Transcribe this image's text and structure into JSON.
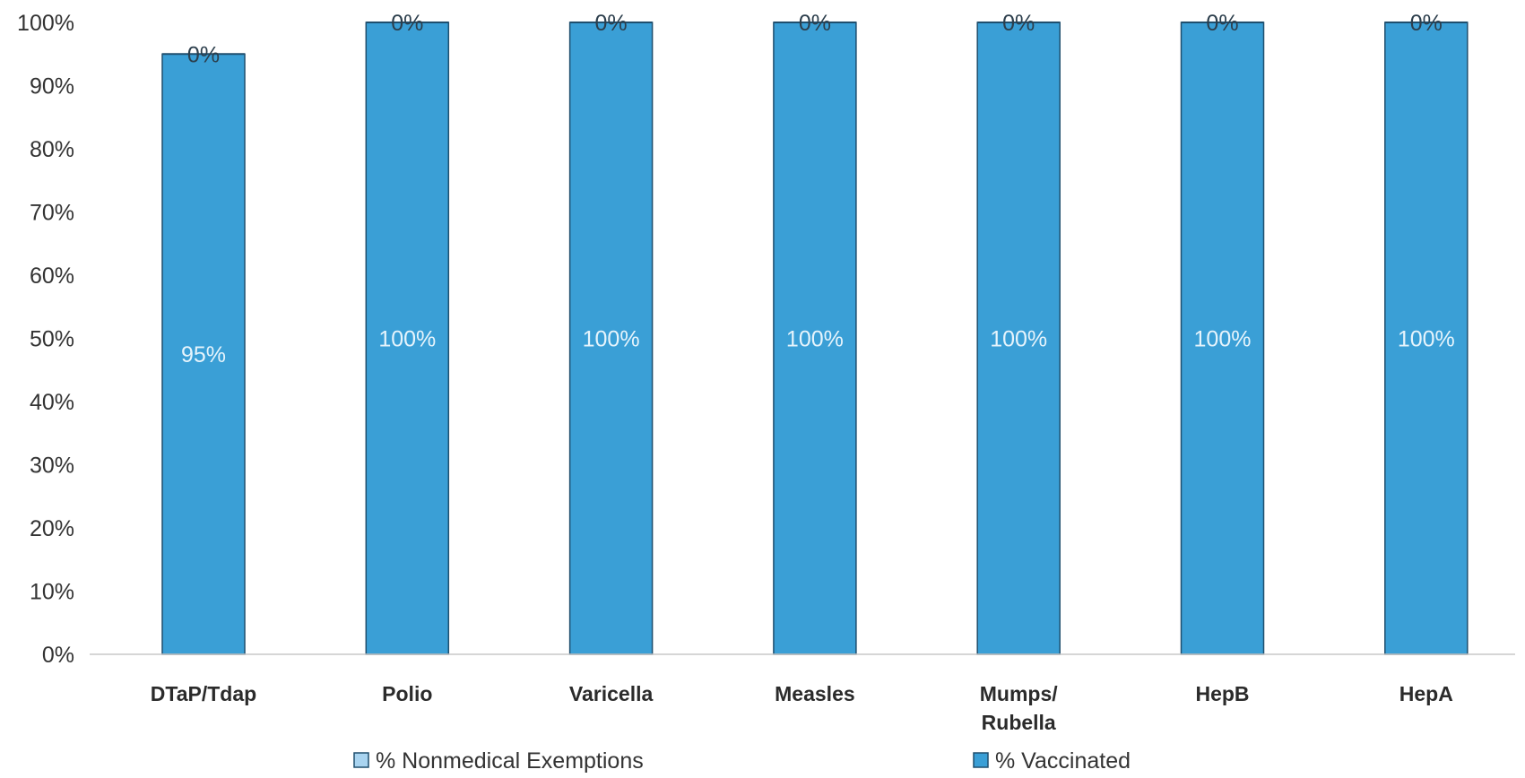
{
  "chart_data": {
    "type": "bar",
    "stacked": true,
    "categories": [
      "DTaP/Tdap",
      "Polio",
      "Varicella",
      "Measles",
      "Mumps/ Rubella",
      "HepB",
      "HepA"
    ],
    "category_lines": [
      [
        "DTaP/Tdap"
      ],
      [
        "Polio"
      ],
      [
        "Varicella"
      ],
      [
        "Measles"
      ],
      [
        "Mumps/",
        "Rubella"
      ],
      [
        "HepB"
      ],
      [
        "HepA"
      ]
    ],
    "series": [
      {
        "name": "% Vaccinated",
        "values": [
          95,
          100,
          100,
          100,
          100,
          100,
          100
        ],
        "labels": [
          "95%",
          "100%",
          "100%",
          "100%",
          "100%",
          "100%",
          "100%"
        ],
        "color": "#3a9fd6"
      },
      {
        "name": "% Nonmedical Exemptions",
        "values": [
          0,
          0,
          0,
          0,
          0,
          0,
          0
        ],
        "labels": [
          "0%",
          "0%",
          "0%",
          "0%",
          "0%",
          "0%",
          "0%"
        ],
        "color": "#a9d4f0"
      }
    ],
    "legend": [
      "% Nonmedical Exemptions",
      "% Vaccinated"
    ],
    "legend_position": "bottom",
    "ylim": [
      0,
      100
    ],
    "yticks": [
      "0%",
      "10%",
      "20%",
      "30%",
      "40%",
      "50%",
      "60%",
      "70%",
      "80%",
      "90%",
      "100%"
    ],
    "grid": false
  }
}
